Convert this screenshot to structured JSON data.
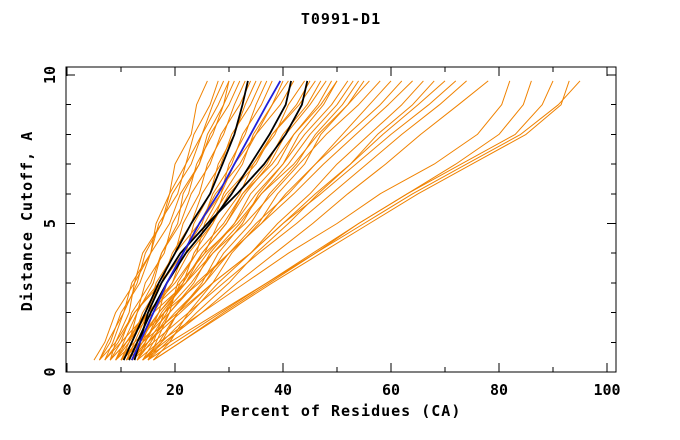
{
  "chart_data": {
    "type": "line",
    "title": "T0991-D1",
    "xlabel": "Percent of Residues (CA)",
    "ylabel": "Distance Cutoff, A",
    "xlim": [
      0,
      102
    ],
    "ylim": [
      0,
      10.3
    ],
    "grid": false,
    "legend": "none",
    "x_ticks_major": [
      0,
      20,
      40,
      60,
      80,
      100
    ],
    "x_ticks_minor": [
      10,
      30,
      50,
      70,
      90
    ],
    "y_ticks_major": [
      0,
      5,
      10
    ],
    "y_ticks_minor": [
      1,
      2,
      3,
      4,
      6,
      7,
      8,
      9
    ],
    "cutoff_levels": [
      0.4,
      1,
      2,
      3,
      4,
      5,
      6,
      7,
      8,
      9,
      9.8
    ],
    "series_groups": [
      {
        "name": "prediction-models",
        "color": "#f08200",
        "width": 1,
        "curves": [
          [
            5,
            7,
            9,
            12.5,
            14,
            17.5,
            19.5,
            23,
            25,
            28,
            30
          ],
          [
            6,
            8,
            10,
            13.5,
            15.5,
            19,
            21,
            24.5,
            26.5,
            30,
            32
          ],
          [
            7,
            8.5,
            10.5,
            13,
            14.5,
            17.5,
            19,
            22,
            23.5,
            26.5,
            28
          ],
          [
            8,
            10,
            12,
            15.5,
            17.5,
            21,
            23,
            26.5,
            28.5,
            32,
            34
          ],
          [
            9,
            10.5,
            13,
            14.5,
            18,
            19.5,
            22.5,
            24,
            27,
            29,
            31
          ],
          [
            10,
            12,
            14,
            17.5,
            19.5,
            23,
            25,
            28.5,
            30.5,
            34,
            36
          ],
          [
            11,
            12.5,
            15,
            16.5,
            20,
            21.5,
            24.5,
            26,
            29,
            31,
            33
          ],
          [
            12,
            14,
            16,
            19.5,
            21.5,
            25,
            27,
            30.5,
            32.5,
            36,
            38
          ],
          [
            13,
            14.5,
            17,
            18.5,
            22,
            23.5,
            26.5,
            28,
            31,
            33,
            35
          ],
          [
            8,
            9,
            11.5,
            12.5,
            15.5,
            16.5,
            19,
            20,
            23,
            24,
            26
          ],
          [
            14,
            16,
            18,
            21.5,
            23.5,
            27,
            29,
            32.5,
            34.5,
            38,
            40
          ],
          [
            15,
            16.5,
            19,
            20.5,
            24,
            25.5,
            28.5,
            30,
            33,
            35,
            37
          ],
          [
            10,
            11.5,
            13,
            16,
            17.5,
            20.5,
            21.5,
            24.5,
            26,
            29,
            30
          ],
          [
            6,
            7.5,
            10.5,
            12,
            15.5,
            17,
            20.5,
            22,
            25,
            27,
            29
          ],
          [
            7,
            9.5,
            12.5,
            17,
            20,
            24.5,
            27.5,
            32,
            35,
            39.5,
            42
          ],
          [
            9,
            11.5,
            15,
            19.5,
            22.5,
            27,
            30,
            35,
            38,
            42.5,
            45
          ],
          [
            11,
            13.5,
            17,
            21.5,
            25,
            29.5,
            33,
            37.5,
            40.5,
            45,
            48
          ],
          [
            13,
            15,
            18.5,
            21,
            25.5,
            28,
            32,
            34.5,
            38.5,
            41,
            44
          ],
          [
            8,
            11,
            15,
            20,
            24,
            29,
            32.5,
            38,
            42,
            47,
            50
          ],
          [
            10,
            13,
            17,
            22,
            26,
            31,
            35,
            40,
            44,
            49,
            52
          ],
          [
            12,
            14.5,
            17.5,
            22,
            25,
            29.5,
            32.5,
            37,
            40,
            44.5,
            47
          ],
          [
            14,
            17,
            20.5,
            25.5,
            29,
            34,
            37.5,
            42.5,
            46,
            51,
            54
          ],
          [
            15,
            17.5,
            20.5,
            25,
            28,
            32.5,
            35.5,
            40,
            43,
            47.5,
            50
          ],
          [
            16,
            19,
            22.5,
            27,
            30.5,
            35.5,
            39,
            44,
            47,
            52,
            55
          ],
          [
            6,
            9,
            12.5,
            17.5,
            21,
            26,
            29.5,
            34.5,
            38,
            43,
            46
          ],
          [
            9,
            11,
            14.5,
            17.5,
            21.5,
            24.5,
            28.5,
            31,
            35,
            38,
            41
          ],
          [
            11,
            14,
            18,
            23,
            27,
            32,
            36,
            41,
            45,
            50,
            53
          ],
          [
            13,
            15.5,
            19,
            23.5,
            26.5,
            31,
            34,
            39,
            42,
            46.5,
            49
          ],
          [
            8,
            11,
            16,
            22,
            27,
            33,
            38,
            43,
            48,
            54,
            58
          ],
          [
            10,
            13.5,
            19,
            24,
            30,
            35,
            41,
            46,
            52,
            58,
            62
          ],
          [
            12,
            15,
            20,
            25.5,
            30,
            36,
            40.5,
            46,
            51,
            56,
            60
          ],
          [
            14,
            17.5,
            23,
            28,
            34,
            39,
            45,
            50,
            56,
            62,
            66
          ],
          [
            7,
            10,
            15,
            21,
            25.5,
            31.5,
            36,
            42,
            46.5,
            52,
            56
          ],
          [
            15,
            18.5,
            24,
            30,
            35,
            41,
            46.5,
            52.5,
            57.5,
            64,
            68
          ],
          [
            9,
            12.5,
            18,
            24.5,
            30,
            36,
            42,
            47.5,
            53.5,
            59.5,
            64
          ],
          [
            11,
            15,
            21,
            27,
            34,
            40,
            46,
            52.5,
            58.5,
            65,
            70
          ],
          [
            12,
            16,
            22.5,
            29,
            35.5,
            42.5,
            49,
            55.5,
            62,
            69,
            74
          ],
          [
            14,
            18,
            25,
            31.5,
            38.5,
            45.5,
            52,
            59,
            65.5,
            72.5,
            78
          ],
          [
            13,
            17,
            25,
            33,
            41,
            50,
            58,
            68,
            76,
            80.5,
            82
          ],
          [
            16,
            21,
            29,
            37.5,
            46,
            54,
            63,
            72,
            80,
            84.5,
            86
          ],
          [
            15,
            20,
            28.5,
            37,
            45.5,
            54,
            63,
            73,
            83,
            88,
            90
          ],
          [
            14,
            19,
            28,
            37,
            46,
            55,
            64,
            74,
            84,
            91,
            95
          ],
          [
            16,
            21,
            29.5,
            38,
            47,
            56,
            65,
            75,
            85,
            91.5,
            93
          ],
          [
            10,
            14,
            20.5,
            27,
            34,
            40,
            47,
            53.5,
            60,
            67,
            72
          ]
        ]
      },
      {
        "name": "highlighted-models-black",
        "color": "#000000",
        "width": 1.8,
        "curves": [
          [
            10.5,
            12,
            14.5,
            17,
            20,
            23,
            26.5,
            28.8,
            31,
            32.5,
            33.5
          ],
          [
            11.5,
            13,
            15.5,
            18.5,
            22,
            26.5,
            30.5,
            34,
            37.5,
            40.5,
            41.5
          ],
          [
            12.5,
            13.5,
            15,
            17.5,
            21,
            26,
            31.5,
            36.5,
            40.5,
            43.5,
            44.5
          ]
        ]
      },
      {
        "name": "highlighted-model-blue",
        "color": "#2020d8",
        "width": 1.8,
        "curves": [
          [
            12,
            13.5,
            16,
            18.5,
            21.5,
            24.5,
            28,
            31,
            34,
            37,
            39.5
          ]
        ]
      }
    ]
  },
  "colors": {
    "frame": "#000000",
    "background": "#ffffff",
    "orange_series": "#f08200",
    "black_series": "#000000",
    "blue_series": "#2020d8"
  }
}
